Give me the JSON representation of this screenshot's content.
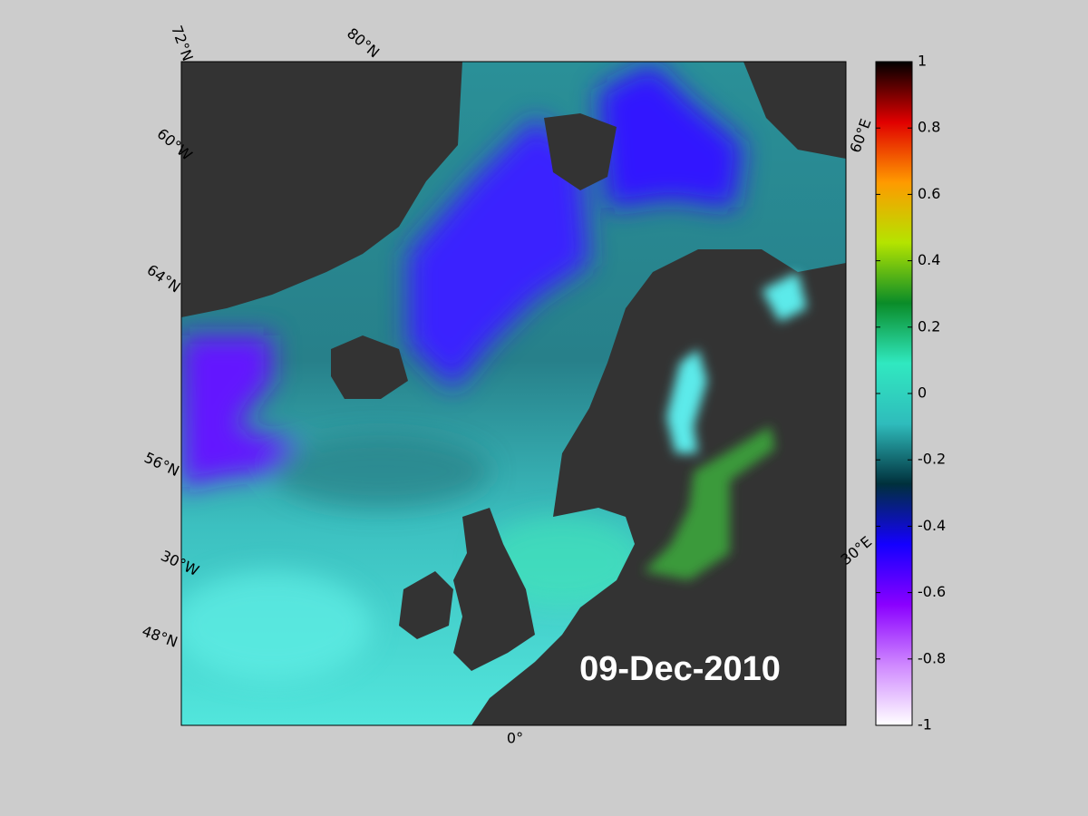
{
  "map": {
    "date": "09-Dec-2010",
    "graticule_labels": [
      "72°N",
      "80°N",
      "60°W",
      "64°N",
      "56°N",
      "30°W",
      "48°N",
      "0°",
      "60°E",
      "30°E"
    ],
    "colorbar": {
      "lim": [
        -1,
        1
      ],
      "ticks": [
        1,
        0.8,
        0.6,
        0.4,
        0.2,
        0,
        -0.2,
        -0.4,
        -0.6,
        -0.8,
        -1
      ],
      "colors": [
        "#ffffff",
        "#cf88ff",
        "#8a00ff",
        "#1400ff",
        "#00303c",
        "#2fbcbc",
        "#30e8c0",
        "#0a8c28",
        "#b4e400",
        "#ff9a00",
        "#e00000",
        "#000000"
      ]
    }
  }
}
